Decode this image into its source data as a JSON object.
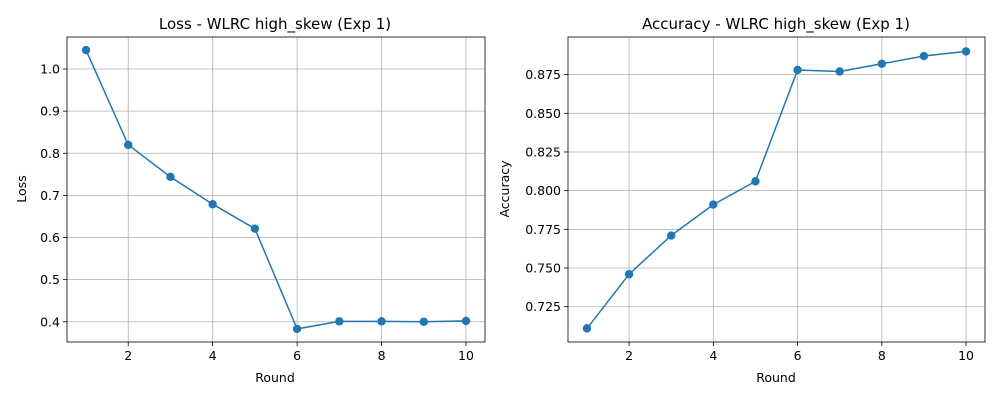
{
  "colors": {
    "series": "#1f77b4"
  },
  "chart_data": [
    {
      "type": "line",
      "title": "Loss - WLRC high_skew (Exp 1)",
      "xlabel": "Round",
      "ylabel": "Loss",
      "x": [
        1,
        2,
        3,
        4,
        5,
        6,
        7,
        8,
        9,
        10
      ],
      "series": [
        {
          "values": [
            1.045,
            0.82,
            0.744,
            0.679,
            0.621,
            0.383,
            0.401,
            0.401,
            0.4,
            0.402
          ]
        }
      ],
      "xlim": [
        0.55,
        10.45
      ],
      "ylim": [
        0.352,
        1.076
      ],
      "xticks": [
        2,
        4,
        6,
        8,
        10
      ],
      "xtick_labels": [
        "2",
        "4",
        "6",
        "8",
        "10"
      ],
      "yticks": [
        0.4,
        0.5,
        0.6,
        0.7,
        0.8,
        0.9,
        1.0
      ],
      "ytick_labels": [
        "0.4",
        "0.5",
        "0.6",
        "0.7",
        "0.8",
        "0.9",
        "1.0"
      ],
      "grid": true,
      "markers": "circle"
    },
    {
      "type": "line",
      "title": "Accuracy - WLRC high_skew (Exp 1)",
      "xlabel": "Round",
      "ylabel": "Accuracy",
      "x": [
        1,
        2,
        3,
        4,
        5,
        6,
        7,
        8,
        9,
        10
      ],
      "series": [
        {
          "values": [
            0.711,
            0.746,
            0.771,
            0.791,
            0.806,
            0.878,
            0.877,
            0.882,
            0.887,
            0.89
          ]
        }
      ],
      "xlim": [
        0.55,
        10.45
      ],
      "ylim": [
        0.7022,
        0.8993
      ],
      "xticks": [
        2,
        4,
        6,
        8,
        10
      ],
      "xtick_labels": [
        "2",
        "4",
        "6",
        "8",
        "10"
      ],
      "yticks": [
        0.725,
        0.75,
        0.775,
        0.8,
        0.825,
        0.85,
        0.875
      ],
      "ytick_labels": [
        "0.725",
        "0.750",
        "0.775",
        "0.800",
        "0.825",
        "0.850",
        "0.875"
      ],
      "grid": true,
      "markers": "circle"
    }
  ]
}
